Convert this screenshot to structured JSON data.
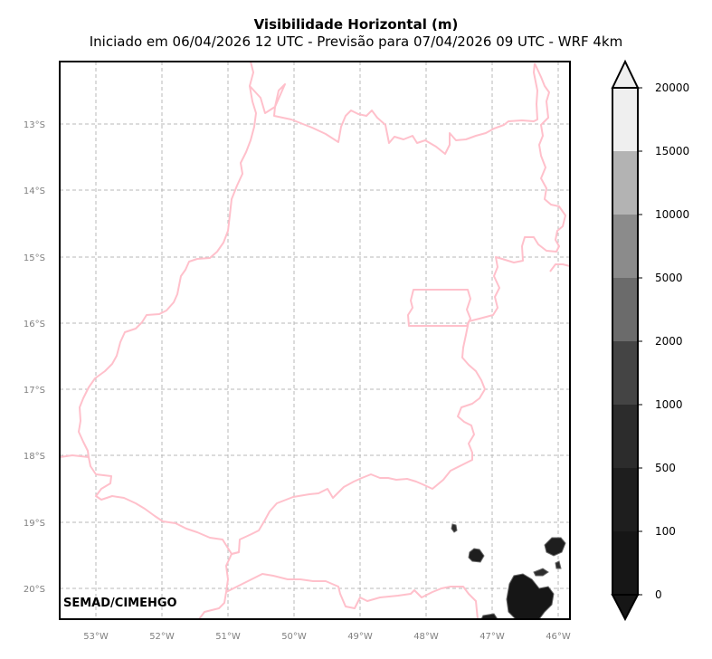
{
  "title": "Visibilidade Horizontal (m)",
  "subtitle": "Iniciado em 06/04/2026 12 UTC - Previsão para 07/04/2026 09 UTC - WRF 4km",
  "credit": "SEMAD/CIMEHGO",
  "map": {
    "lon_labels": [
      "53°W",
      "52°W",
      "51°W",
      "50°W",
      "49°W",
      "48°W",
      "47°W",
      "46°W"
    ],
    "lat_labels": [
      "13°S",
      "14°S",
      "15°S",
      "16°S",
      "17°S",
      "18°S",
      "19°S",
      "20°S"
    ],
    "border_color": "#ffc0cb",
    "grid": true
  },
  "colorbar": {
    "levels": [
      "0",
      "100",
      "500",
      "1000",
      "2000",
      "5000",
      "10000",
      "15000",
      "20000"
    ],
    "colors": [
      "#161616",
      "#1e1e1e",
      "#2c2c2c",
      "#444444",
      "#6b6b6b",
      "#8b8b8b",
      "#b3b3b3",
      "#efefef"
    ],
    "extend": "both"
  }
}
